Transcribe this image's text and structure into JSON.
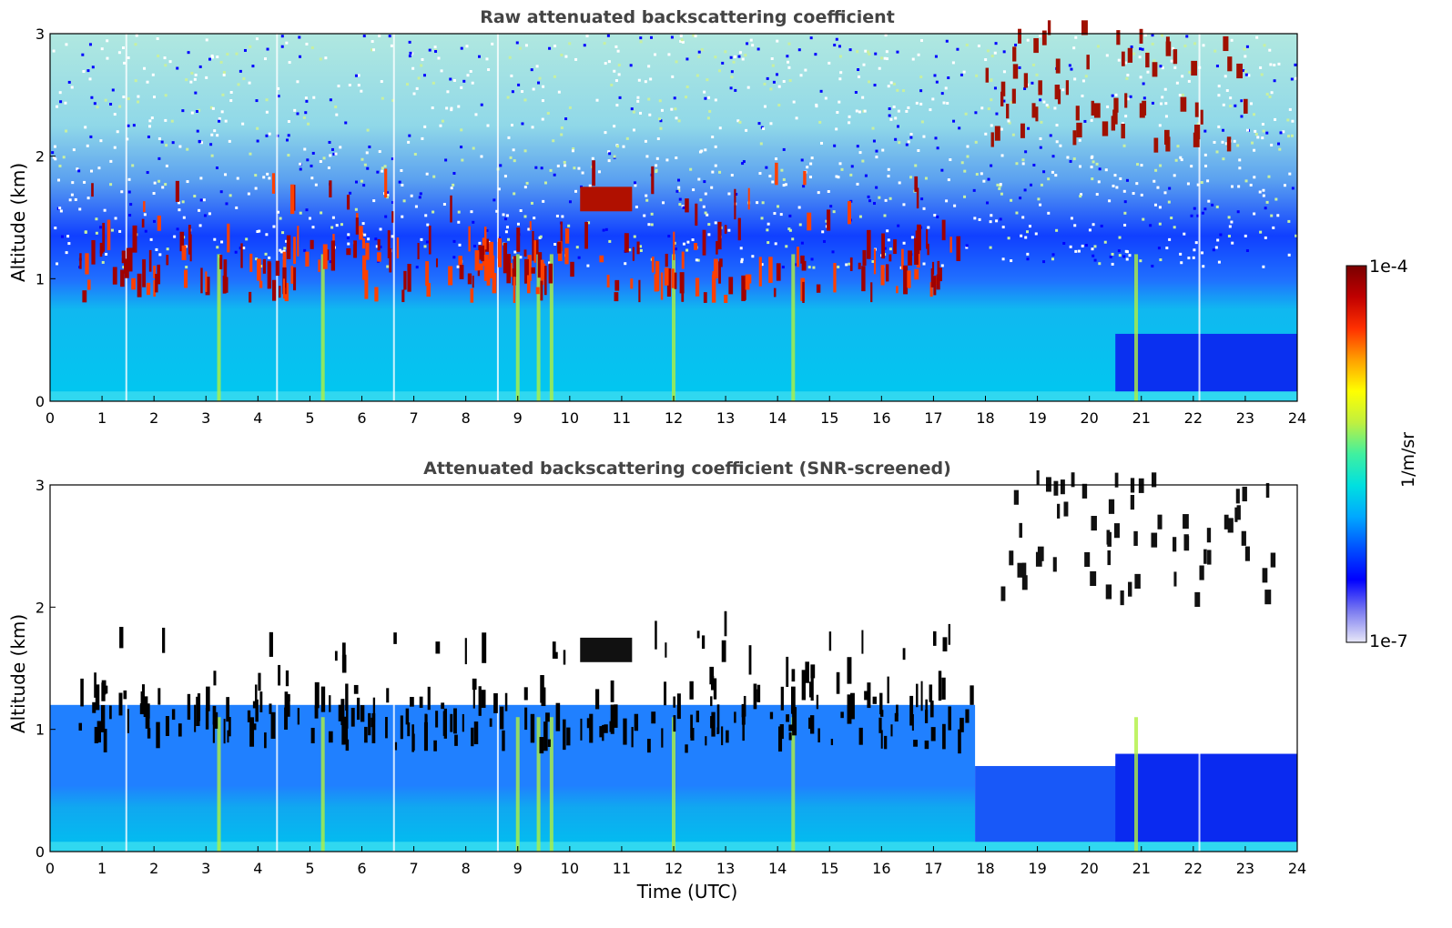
{
  "chart_data": [
    {
      "type": "heatmap",
      "title": "Raw attenuated backscattering coefficient",
      "xlabel": "",
      "ylabel": "Altitude (km)",
      "xlim": [
        0,
        24
      ],
      "ylim": [
        0,
        3
      ],
      "x_ticks": [
        "0",
        "1",
        "2",
        "3",
        "4",
        "5",
        "6",
        "7",
        "8",
        "9",
        "10",
        "11",
        "12",
        "13",
        "14",
        "15",
        "16",
        "17",
        "18",
        "19",
        "20",
        "21",
        "22",
        "23",
        "24"
      ],
      "y_ticks": [
        "0",
        "1",
        "2",
        "3"
      ],
      "features": {
        "boundary_layer_top_km": 0.9,
        "cloud_layer_altitude_km": [
          0.8,
          1.8
        ],
        "high_clouds_hours": [
          18,
          23.5
        ],
        "high_clouds_altitude_km": [
          2.0,
          3.0
        ]
      }
    },
    {
      "type": "heatmap",
      "title": "Attenuated backscattering coefficient (SNR-screened)",
      "xlabel": "Time (UTC)",
      "ylabel": "Altitude (km)",
      "xlim": [
        0,
        24
      ],
      "ylim": [
        0,
        3
      ],
      "x_ticks": [
        "0",
        "1",
        "2",
        "3",
        "4",
        "5",
        "6",
        "7",
        "8",
        "9",
        "10",
        "11",
        "12",
        "13",
        "14",
        "15",
        "16",
        "17",
        "18",
        "19",
        "20",
        "21",
        "22",
        "23",
        "24"
      ],
      "y_ticks": [
        "0",
        "1",
        "2",
        "3"
      ],
      "features": {
        "signal_top_km": 1.2,
        "screened_region": "above signal top (white)"
      }
    }
  ],
  "colorbar": {
    "max_label": "1e-4",
    "min_label": "1e-7",
    "unit": "1/m/sr",
    "scale": "log",
    "colors": [
      "#e8e8f8",
      "#7b7bf0",
      "#0000ff",
      "#0050ff",
      "#00a8ff",
      "#00e0e0",
      "#40f0a0",
      "#c0f040",
      "#ffff00",
      "#ffa000",
      "#ff3000",
      "#c00000",
      "#7a0000"
    ]
  }
}
